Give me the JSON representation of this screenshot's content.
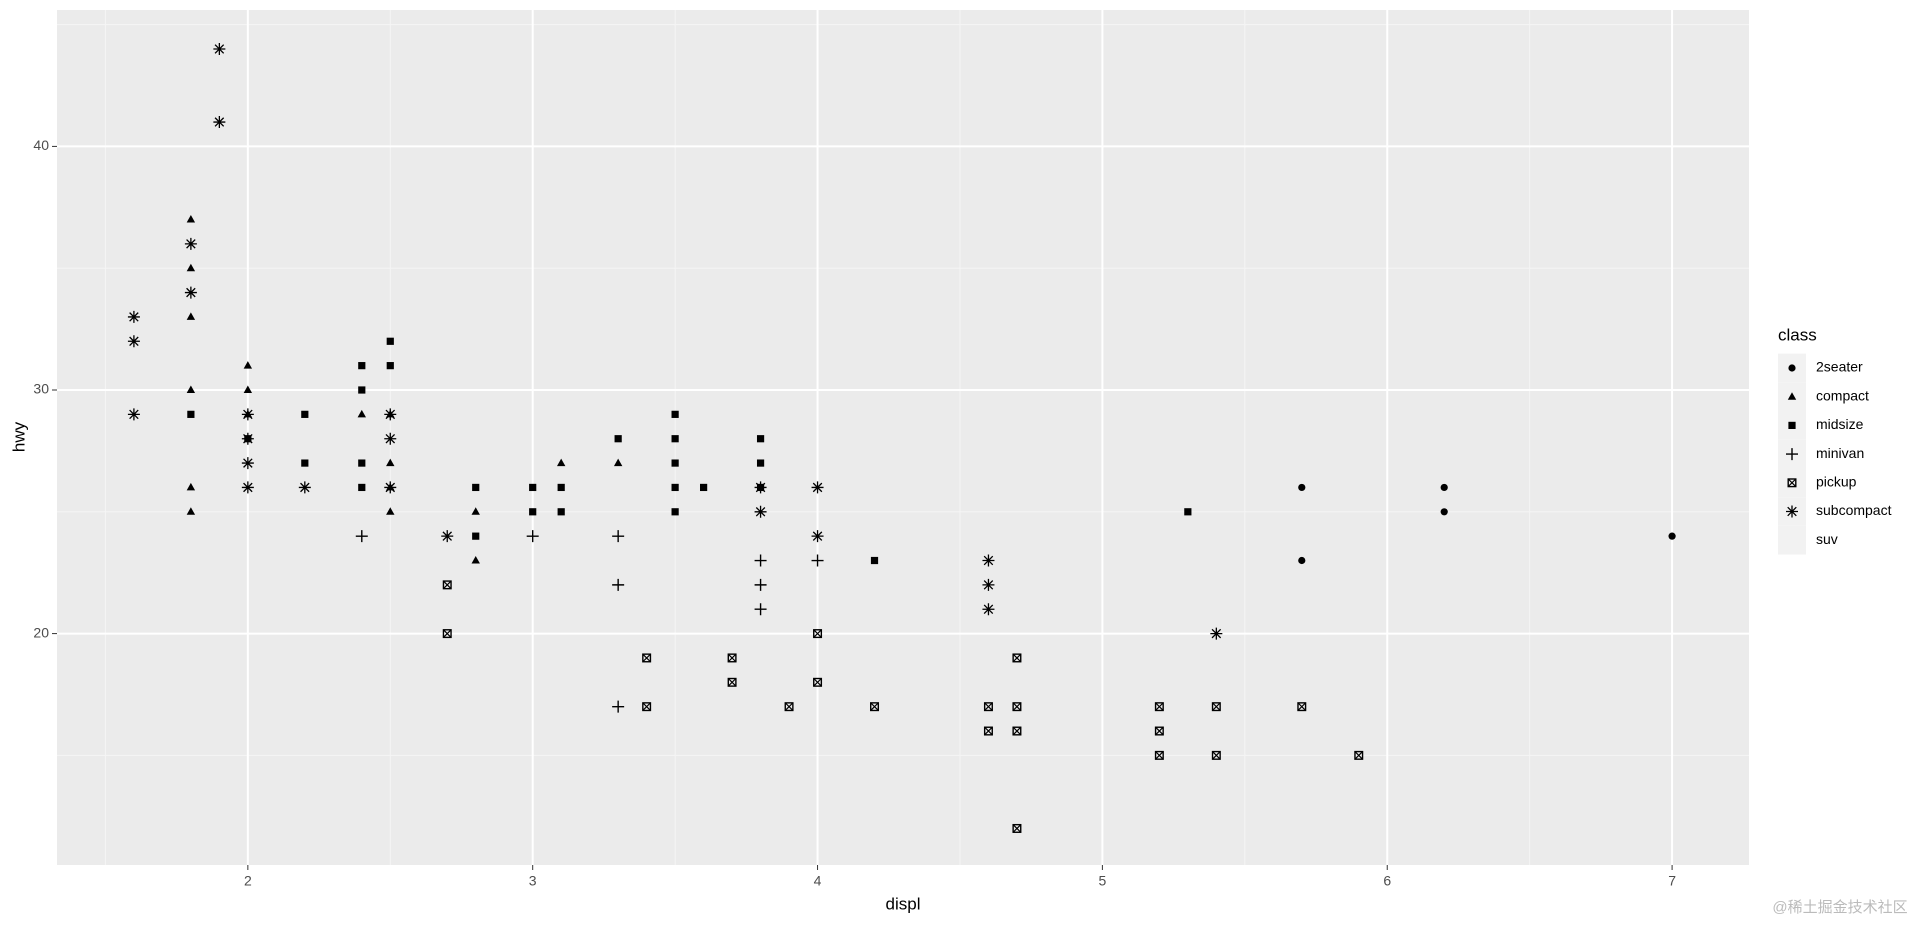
{
  "chart_data": {
    "type": "scatter",
    "x_label": "displ",
    "y_label": "hwy",
    "xlim": [
      1.33,
      7.27
    ],
    "ylim": [
      10.5,
      45.6
    ],
    "xticks": [
      2,
      3,
      4,
      5,
      6,
      7
    ],
    "yticks": [
      20,
      30,
      40
    ],
    "x_minor_gridlines": [
      1.5,
      2.5,
      3.5,
      4.5,
      5.5,
      6.5
    ],
    "y_minor_gridlines": [
      15,
      25,
      35,
      45
    ],
    "grid": true,
    "legend_title": "class",
    "legend_position": "right",
    "color": "#000000",
    "series": [
      {
        "name": "2seater",
        "shape": "circle",
        "x": [
          5.7,
          5.7,
          6.2,
          6.2,
          7
        ],
        "values": [
          26,
          23,
          26,
          25,
          24
        ]
      },
      {
        "name": "compact",
        "shape": "triangle",
        "x": [
          1.8,
          1.8,
          1.8,
          1.8,
          1.8,
          1.8,
          2,
          2,
          2,
          2.4,
          2.5,
          2.5,
          2.5,
          2.5,
          2.8,
          2.8,
          3.1,
          3.3
        ],
        "values": [
          37,
          35,
          33,
          30,
          26,
          25,
          31,
          30,
          29,
          29,
          29,
          27,
          26,
          25,
          25,
          23,
          27,
          27
        ]
      },
      {
        "name": "midsize",
        "shape": "square",
        "x": [
          1.8,
          2,
          2.2,
          2.2,
          2.4,
          2.4,
          2.4,
          2.4,
          2.5,
          2.5,
          2.8,
          2.8,
          3,
          3,
          3.1,
          3.1,
          3.3,
          3.5,
          3.5,
          3.5,
          3.5,
          3.5,
          3.6,
          3.8,
          3.8,
          3.8,
          4.2,
          5.3
        ],
        "values": [
          29,
          28,
          29,
          27,
          31,
          30,
          27,
          26,
          32,
          31,
          26,
          24,
          26,
          25,
          26,
          25,
          28,
          29,
          28,
          27,
          26,
          25,
          26,
          28,
          27,
          26,
          23,
          25
        ]
      },
      {
        "name": "minivan",
        "shape": "plus",
        "x": [
          2.4,
          3,
          3.3,
          3.3,
          3.3,
          3.8,
          3.8,
          3.8,
          4
        ],
        "values": [
          24,
          24,
          24,
          22,
          17,
          23,
          22,
          21,
          23
        ]
      },
      {
        "name": "pickup",
        "shape": "square-cross",
        "x": [
          2.7,
          2.7,
          3.4,
          3.4,
          3.7,
          3.7,
          3.9,
          4,
          4,
          4.2,
          4.6,
          4.6,
          4.7,
          4.7,
          4.7,
          4.7,
          5.2,
          5.2,
          5.2,
          5.4,
          5.4,
          5.7,
          5.9
        ],
        "values": [
          22,
          20,
          19,
          17,
          19,
          18,
          17,
          20,
          18,
          17,
          17,
          16,
          19,
          17,
          16,
          12,
          17,
          16,
          15,
          17,
          15,
          17,
          15
        ]
      },
      {
        "name": "subcompact",
        "shape": "asterisk",
        "x": [
          1.6,
          1.6,
          1.6,
          1.8,
          1.8,
          1.9,
          1.9,
          2,
          2,
          2,
          2,
          2.2,
          2.5,
          2.5,
          2.5,
          2.7,
          3.8,
          3.8,
          4,
          4,
          4.6,
          4.6,
          4.6,
          5.4
        ],
        "values": [
          33,
          32,
          29,
          36,
          34,
          44,
          41,
          29,
          28,
          27,
          26,
          26,
          29,
          28,
          26,
          24,
          26,
          25,
          26,
          24,
          23,
          22,
          21,
          20
        ]
      },
      {
        "name": "suv",
        "shape": null,
        "x": [],
        "values": []
      }
    ],
    "watermark": "@稀土掘金技术社区"
  }
}
